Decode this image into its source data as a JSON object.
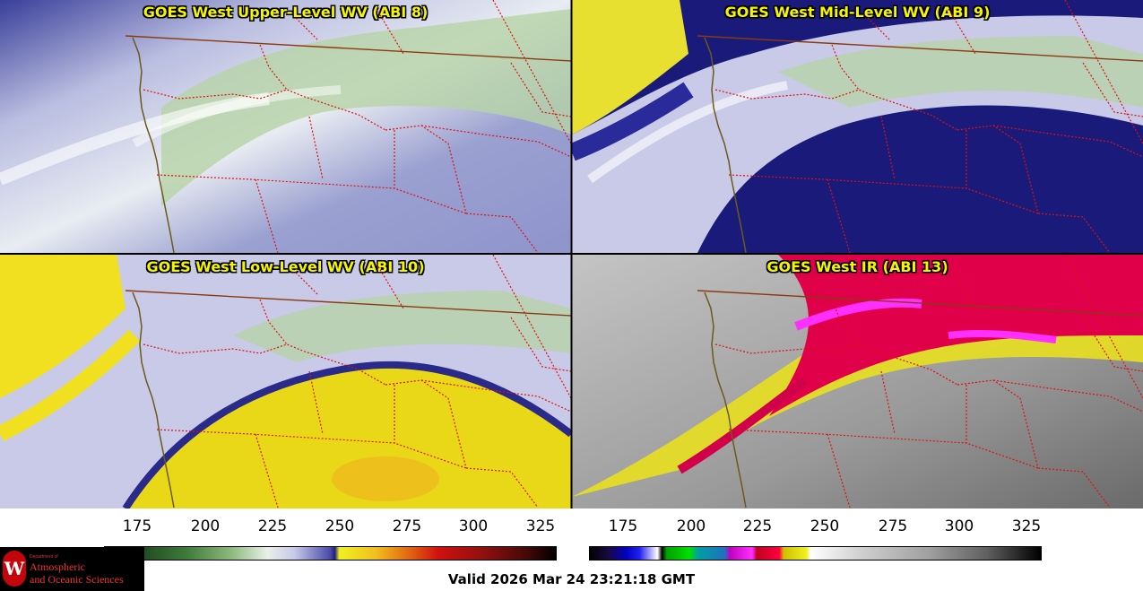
{
  "panels": [
    {
      "title": "GOES West Upper-Level WV (ABI 8)",
      "style": "upper"
    },
    {
      "title": "GOES West Mid-Level WV (ABI 9)",
      "style": "mid"
    },
    {
      "title": "GOES West Low-Level WV (ABI 10)",
      "style": "low"
    },
    {
      "title": "GOES West IR (ABI 13)",
      "style": "ir"
    }
  ],
  "colorbars": {
    "wv": {
      "ticks": [
        "175",
        "200",
        "225",
        "250",
        "275",
        "300",
        "325"
      ]
    },
    "ir": {
      "ticks": [
        "175",
        "200",
        "225",
        "250",
        "275",
        "300",
        "325"
      ]
    }
  },
  "valid_time": "Valid 2026 Mar 24 23:21:18 GMT",
  "logo": {
    "line1": "Department of",
    "line2": "Atmospheric",
    "line3": "and Oceanic Sciences",
    "seal_letter": "W"
  },
  "colors": {
    "title_text": "#f5f500",
    "coastline": "#6b5a1a",
    "border_international": "#8b3a10",
    "state_border": "#e01010"
  }
}
